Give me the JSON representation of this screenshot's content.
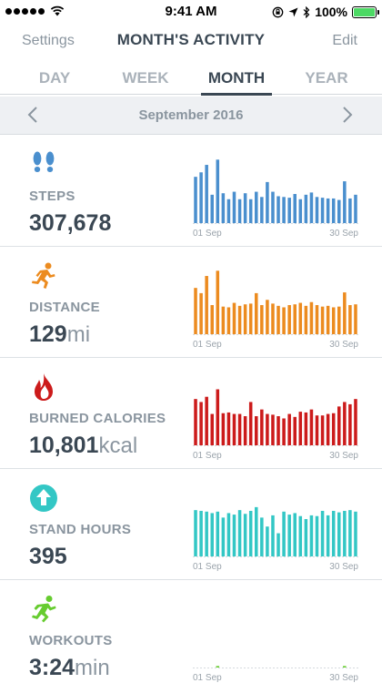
{
  "status": {
    "time": "9:41 AM",
    "battery_text": "100%",
    "battery_level": 1.0,
    "icons": [
      "signal-dots",
      "wifi-icon",
      "lock-rotation-icon",
      "location-arrow-icon",
      "bluetooth-icon",
      "battery-icon"
    ]
  },
  "nav": {
    "left": "Settings",
    "title": "MONTH'S ACTIVITY",
    "right": "Edit"
  },
  "tabs": [
    "DAY",
    "WEEK",
    "MONTH",
    "YEAR"
  ],
  "active_tab": "MONTH",
  "period": {
    "label": "September 2016"
  },
  "colors": {
    "steps": "#4a8fce",
    "distance": "#ec8b1f",
    "calories": "#cc1b1b",
    "stand": "#33c7c5",
    "workouts": "#66cc2f",
    "text": "#3a4753",
    "muted": "#8a959f"
  },
  "metrics": [
    {
      "key": "steps",
      "name": "STEPS",
      "value": "307,678",
      "unit": "",
      "icon": "footprints-icon"
    },
    {
      "key": "distance",
      "name": "DISTANCE",
      "value": "129",
      "unit": "mi",
      "icon": "runner-icon"
    },
    {
      "key": "calories",
      "name": "BURNED CALORIES",
      "value": "10,801",
      "unit": "kcal",
      "icon": "flame-icon"
    },
    {
      "key": "stand",
      "name": "STAND HOURS",
      "value": "395",
      "unit": "",
      "icon": "stand-arrow-icon"
    },
    {
      "key": "workouts",
      "name": "WORKOUTS",
      "value": "3:24",
      "unit": "min",
      "icon": "workout-runner-icon"
    }
  ],
  "chart_data": [
    {
      "type": "bar",
      "series": "steps",
      "x_start_label": "01 Sep",
      "x_end_label": "30 Sep",
      "values": [
        0.62,
        0.68,
        0.78,
        0.38,
        0.85,
        0.4,
        0.32,
        0.42,
        0.32,
        0.4,
        0.32,
        0.42,
        0.35,
        0.55,
        0.42,
        0.36,
        0.35,
        0.34,
        0.39,
        0.32,
        0.38,
        0.41,
        0.35,
        0.34,
        0.33,
        0.33,
        0.31,
        0.56,
        0.33,
        0.38
      ]
    },
    {
      "type": "bar",
      "series": "distance",
      "x_start_label": "01 Sep",
      "x_end_label": "30 Sep",
      "values": [
        0.62,
        0.55,
        0.78,
        0.39,
        0.85,
        0.37,
        0.36,
        0.42,
        0.38,
        0.4,
        0.41,
        0.55,
        0.39,
        0.46,
        0.41,
        0.38,
        0.36,
        0.39,
        0.4,
        0.42,
        0.38,
        0.43,
        0.39,
        0.37,
        0.38,
        0.36,
        0.37,
        0.56,
        0.39,
        0.4
      ]
    },
    {
      "type": "bar",
      "series": "calories",
      "x_start_label": "01 Sep",
      "x_end_label": "30 Sep",
      "values": [
        0.62,
        0.58,
        0.65,
        0.42,
        0.75,
        0.43,
        0.44,
        0.42,
        0.42,
        0.39,
        0.58,
        0.39,
        0.48,
        0.42,
        0.41,
        0.39,
        0.36,
        0.42,
        0.38,
        0.45,
        0.44,
        0.48,
        0.4,
        0.4,
        0.42,
        0.43,
        0.52,
        0.58,
        0.55,
        0.62
      ]
    },
    {
      "type": "bar",
      "series": "stand",
      "x_start_label": "01 Sep",
      "x_end_label": "30 Sep",
      "values": [
        0.62,
        0.61,
        0.6,
        0.58,
        0.6,
        0.52,
        0.58,
        0.56,
        0.62,
        0.57,
        0.61,
        0.66,
        0.52,
        0.4,
        0.55,
        0.31,
        0.6,
        0.56,
        0.58,
        0.54,
        0.5,
        0.55,
        0.54,
        0.61,
        0.55,
        0.61,
        0.59,
        0.61,
        0.62,
        0.6
      ]
    },
    {
      "type": "bar",
      "series": "workouts",
      "x_start_label": "01 Sep",
      "x_end_label": "30 Sep",
      "values": [
        0,
        0,
        0,
        0,
        0.02,
        0,
        0,
        0,
        0,
        0,
        0,
        0,
        0,
        0,
        0,
        0,
        0,
        0,
        0,
        0,
        0,
        0,
        0,
        0,
        0,
        0,
        0,
        0.02,
        0,
        0
      ]
    }
  ]
}
